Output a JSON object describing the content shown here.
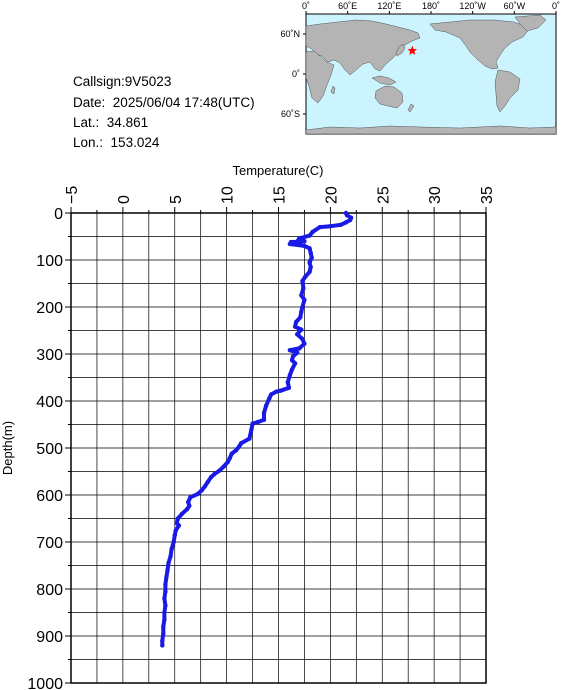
{
  "info": {
    "callsign_label": "Callsign:",
    "callsign": "9V5023",
    "date_label": "Date:",
    "date": "2025/06/04 17:48(UTC)",
    "lat_label": "Lat.:",
    "lat": "34.861",
    "lon_label": "Lon.:",
    "lon": "153.024"
  },
  "map": {
    "lon_ticks": [
      "0˚",
      "60˚E",
      "120˚E",
      "180˚",
      "120˚W",
      "60˚W",
      "0˚"
    ],
    "lat_ticks": [
      "60˚N",
      "0˚",
      "60˚S"
    ],
    "ocean_color": "#ccf4ff",
    "land_color": "#b4b4b4",
    "marker": {
      "lat": 34.861,
      "lon": 153.024,
      "color": "#ff0000",
      "icon": "star-icon"
    }
  },
  "chart_data": {
    "type": "line",
    "xlabel": "Temperature(C)",
    "ylabel": "Depth(m)",
    "xlim": [
      -5,
      35
    ],
    "ylim": [
      0,
      1000
    ],
    "x_ticks": [
      "-5",
      "0",
      "5",
      "10",
      "15",
      "20",
      "25",
      "30",
      "35"
    ],
    "y_ticks": [
      "0",
      "100",
      "200",
      "300",
      "400",
      "500",
      "600",
      "700",
      "800",
      "900",
      "1000"
    ],
    "grid": true,
    "series": [
      {
        "color": "#1a1ae6",
        "points": [
          [
            21.5,
            0
          ],
          [
            21.6,
            5
          ],
          [
            22.0,
            10
          ],
          [
            21.9,
            15
          ],
          [
            21.5,
            20
          ],
          [
            21.0,
            25
          ],
          [
            20.0,
            28
          ],
          [
            19.0,
            30
          ],
          [
            18.3,
            40
          ],
          [
            18.0,
            48
          ],
          [
            17.0,
            54
          ],
          [
            16.9,
            58
          ],
          [
            17.5,
            60
          ],
          [
            16.2,
            62
          ],
          [
            16.1,
            66
          ],
          [
            17.5,
            70
          ],
          [
            18.0,
            75
          ],
          [
            18.1,
            85
          ],
          [
            18.2,
            95
          ],
          [
            18.0,
            105
          ],
          [
            18.1,
            115
          ],
          [
            18.0,
            125
          ],
          [
            17.6,
            135
          ],
          [
            17.3,
            145
          ],
          [
            17.4,
            160
          ],
          [
            17.2,
            175
          ],
          [
            17.5,
            185
          ],
          [
            17.3,
            200
          ],
          [
            17.2,
            210
          ],
          [
            17.1,
            222
          ],
          [
            16.7,
            232
          ],
          [
            16.6,
            242
          ],
          [
            17.2,
            248
          ],
          [
            16.8,
            258
          ],
          [
            17.3,
            268
          ],
          [
            17.5,
            278
          ],
          [
            17.0,
            288
          ],
          [
            16.1,
            292
          ],
          [
            16.8,
            297
          ],
          [
            16.4,
            305
          ],
          [
            16.3,
            313
          ],
          [
            16.6,
            320
          ],
          [
            16.3,
            333
          ],
          [
            16.1,
            345
          ],
          [
            15.9,
            360
          ],
          [
            16.0,
            372
          ],
          [
            15.2,
            378
          ],
          [
            14.8,
            380
          ],
          [
            14.3,
            386
          ],
          [
            14.1,
            395
          ],
          [
            13.8,
            410
          ],
          [
            13.6,
            425
          ],
          [
            13.6,
            440
          ],
          [
            13.0,
            445
          ],
          [
            12.5,
            448
          ],
          [
            12.4,
            460
          ],
          [
            12.2,
            480
          ],
          [
            11.4,
            490
          ],
          [
            11.2,
            497
          ],
          [
            10.9,
            505
          ],
          [
            10.5,
            512
          ],
          [
            10.3,
            522
          ],
          [
            10.1,
            530
          ],
          [
            9.7,
            540
          ],
          [
            9.3,
            548
          ],
          [
            8.8,
            556
          ],
          [
            8.5,
            562
          ],
          [
            8.2,
            572
          ],
          [
            7.9,
            582
          ],
          [
            7.6,
            590
          ],
          [
            7.2,
            598
          ],
          [
            6.5,
            605
          ],
          [
            6.3,
            615
          ],
          [
            6.4,
            623
          ],
          [
            6.2,
            630
          ],
          [
            5.7,
            640
          ],
          [
            5.3,
            650
          ],
          [
            5.2,
            660
          ],
          [
            5.4,
            665
          ],
          [
            5.1,
            675
          ],
          [
            5.0,
            685
          ],
          [
            4.9,
            700
          ],
          [
            4.7,
            715
          ],
          [
            4.6,
            730
          ],
          [
            4.4,
            745
          ],
          [
            4.3,
            760
          ],
          [
            4.2,
            775
          ],
          [
            4.1,
            790
          ],
          [
            4.1,
            805
          ],
          [
            4.0,
            820
          ],
          [
            4.1,
            835
          ],
          [
            4.0,
            850
          ],
          [
            4.0,
            865
          ],
          [
            3.9,
            880
          ],
          [
            3.9,
            895
          ],
          [
            3.8,
            910
          ],
          [
            3.8,
            920
          ]
        ]
      }
    ]
  }
}
